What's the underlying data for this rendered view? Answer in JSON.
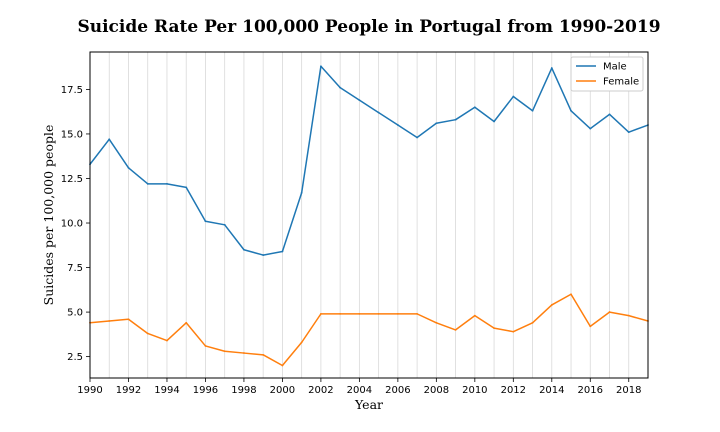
{
  "chart_data": {
    "type": "line",
    "title": "Suicide Rate Per 100,000 People in Portugal from 1990-2019",
    "xlabel": "Year",
    "ylabel": "Suicides per 100,000 people",
    "xlim": [
      1990,
      2019
    ],
    "ylim": [
      1.3,
      19.6
    ],
    "grid": "vertical",
    "legend_position": "top-right",
    "x": [
      1990,
      1991,
      1992,
      1993,
      1994,
      1995,
      1996,
      1997,
      1998,
      1999,
      2000,
      2001,
      2002,
      2003,
      2004,
      2005,
      2006,
      2007,
      2008,
      2009,
      2010,
      2011,
      2012,
      2013,
      2014,
      2015,
      2016,
      2017,
      2018,
      2019
    ],
    "x_ticks": [
      "1990",
      "1992",
      "1994",
      "1996",
      "1998",
      "2000",
      "2002",
      "2004",
      "2006",
      "2008",
      "2010",
      "2012",
      "2014",
      "2016",
      "2018"
    ],
    "y_ticks": [
      "2.5",
      "5.0",
      "7.5",
      "10.0",
      "12.5",
      "15.0",
      "17.5"
    ],
    "series": [
      {
        "name": "Male",
        "color": "#1f77b4",
        "values": [
          13.3,
          14.7,
          13.1,
          12.2,
          12.2,
          12.0,
          10.1,
          9.9,
          8.5,
          8.2,
          8.4,
          11.7,
          18.8,
          17.6,
          16.9,
          16.2,
          15.5,
          14.8,
          15.6,
          15.8,
          16.5,
          15.7,
          17.1,
          16.3,
          18.7,
          16.3,
          15.3,
          16.1,
          15.1,
          15.5
        ]
      },
      {
        "name": "Female",
        "color": "#ff7f0e",
        "values": [
          4.4,
          4.5,
          4.6,
          3.8,
          3.4,
          4.4,
          3.1,
          2.8,
          2.7,
          2.6,
          2.0,
          3.3,
          4.9,
          4.9,
          4.9,
          4.9,
          4.9,
          4.9,
          4.4,
          4.0,
          4.8,
          4.1,
          3.9,
          4.4,
          5.4,
          6.0,
          4.2,
          5.0,
          4.8,
          4.5
        ]
      }
    ]
  }
}
